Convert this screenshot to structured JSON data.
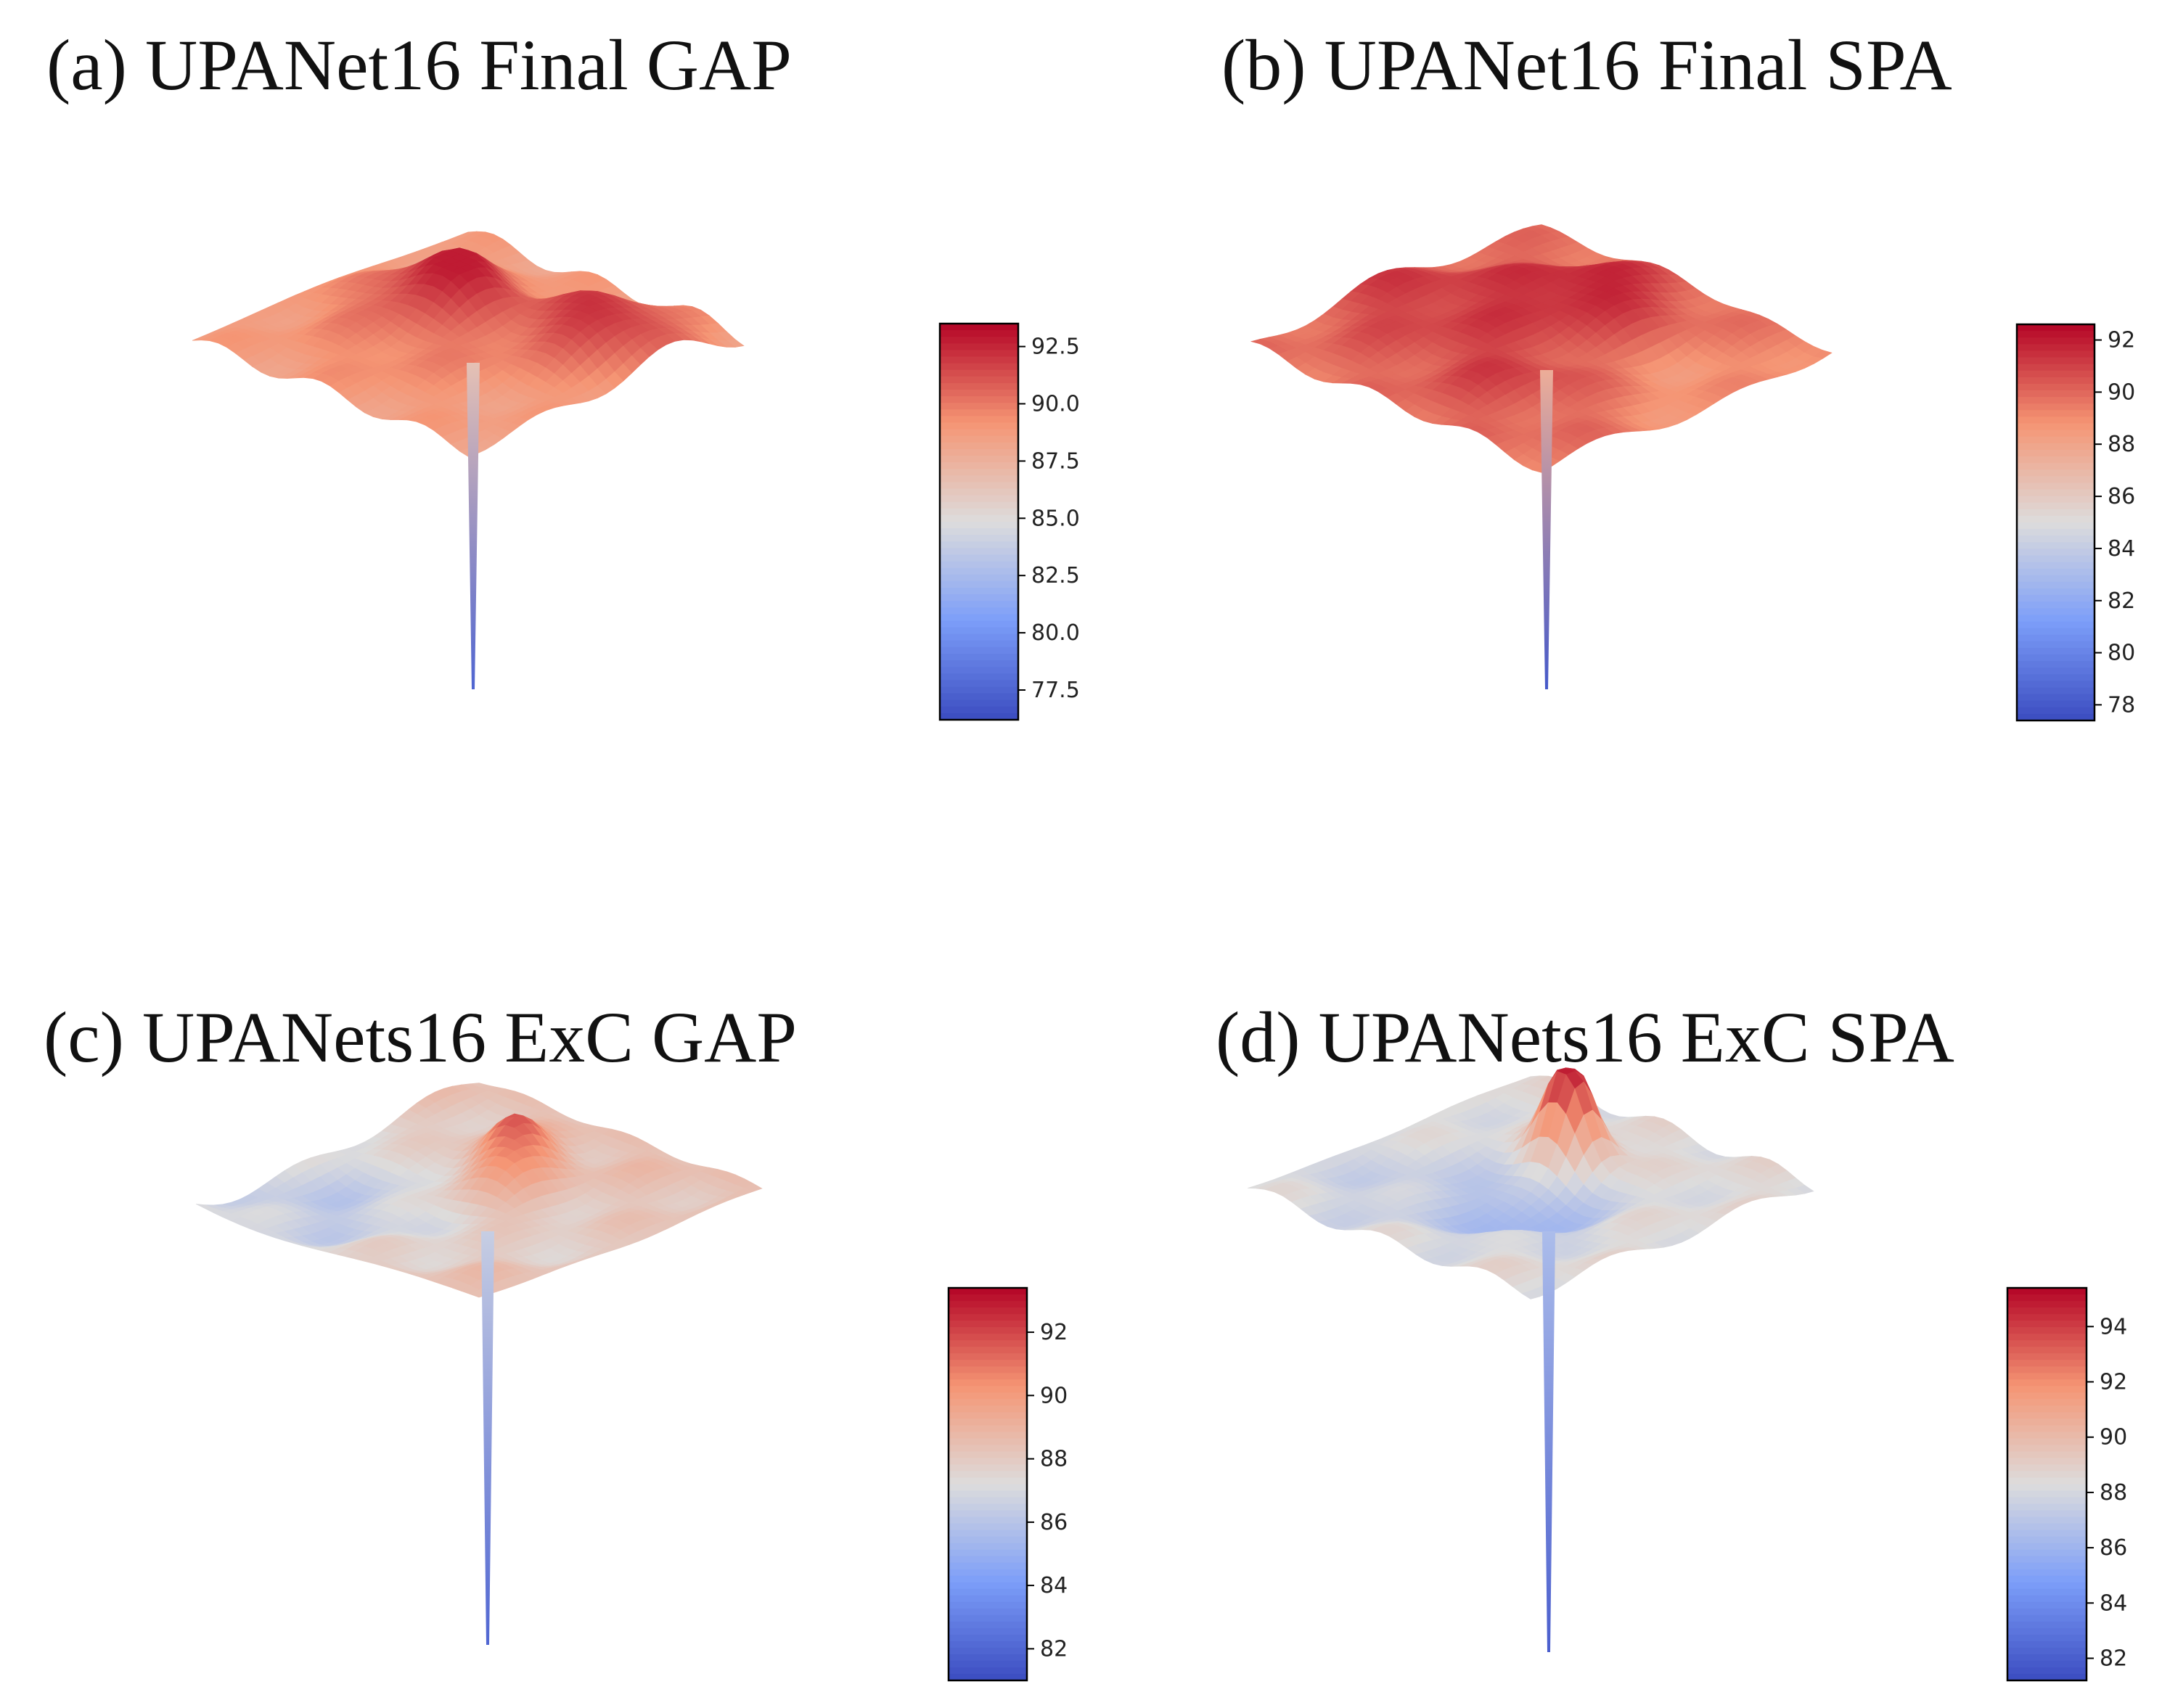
{
  "figure": {
    "panels": [
      {
        "id": "a",
        "title": "(a) UPANet16 Final GAP"
      },
      {
        "id": "b",
        "title": "(b) UPANet16 Final SPA"
      },
      {
        "id": "c",
        "title": "(c) UPANets16 ExC GAP"
      },
      {
        "id": "d",
        "title": "(d) UPANets16 ExC SPA"
      }
    ]
  },
  "chart_data": [
    {
      "type": "surface",
      "title": "(a) UPANet16 Final GAP",
      "colormap": "coolwarm",
      "zlim": [
        76.2,
        93.5
      ],
      "colorbar_ticks": [
        77.5,
        80.0,
        82.5,
        85.0,
        87.5,
        90.0,
        92.5
      ],
      "colorbar_tick_labels": [
        "77.5",
        "80.0",
        "82.5",
        "85.0",
        "87.5",
        "90.0",
        "92.5"
      ],
      "surface": {
        "plateau": 88.5,
        "min": 77.5,
        "max": 92.8
      }
    },
    {
      "type": "surface",
      "title": "(b) UPANet16 Final SPA",
      "colormap": "coolwarm",
      "zlim": [
        77.4,
        92.6
      ],
      "colorbar_ticks": [
        78,
        80,
        82,
        84,
        86,
        88,
        90,
        92
      ],
      "colorbar_tick_labels": [
        "78",
        "80",
        "82",
        "84",
        "86",
        "88",
        "90",
        "92"
      ],
      "surface": {
        "plateau": 89.5,
        "min": 78.0,
        "max": 92.2
      }
    },
    {
      "type": "surface",
      "title": "(c) UPANets16 ExC GAP",
      "colormap": "coolwarm",
      "zlim": [
        81.0,
        93.4
      ],
      "colorbar_ticks": [
        82,
        84,
        86,
        88,
        90,
        92
      ],
      "colorbar_tick_labels": [
        "82",
        "84",
        "86",
        "88",
        "90",
        "92"
      ],
      "surface": {
        "plateau": 88.5,
        "min": 82.0,
        "max": 93.0
      }
    },
    {
      "type": "surface",
      "title": "(d) UPANets16 ExC SPA",
      "colormap": "coolwarm",
      "zlim": [
        81.2,
        95.4
      ],
      "colorbar_ticks": [
        82,
        84,
        86,
        88,
        90,
        92,
        94
      ],
      "colorbar_tick_labels": [
        "82",
        "84",
        "86",
        "88",
        "90",
        "92",
        "94"
      ],
      "surface": {
        "plateau": 88.5,
        "min": 82.0,
        "max": 94.8
      }
    }
  ]
}
